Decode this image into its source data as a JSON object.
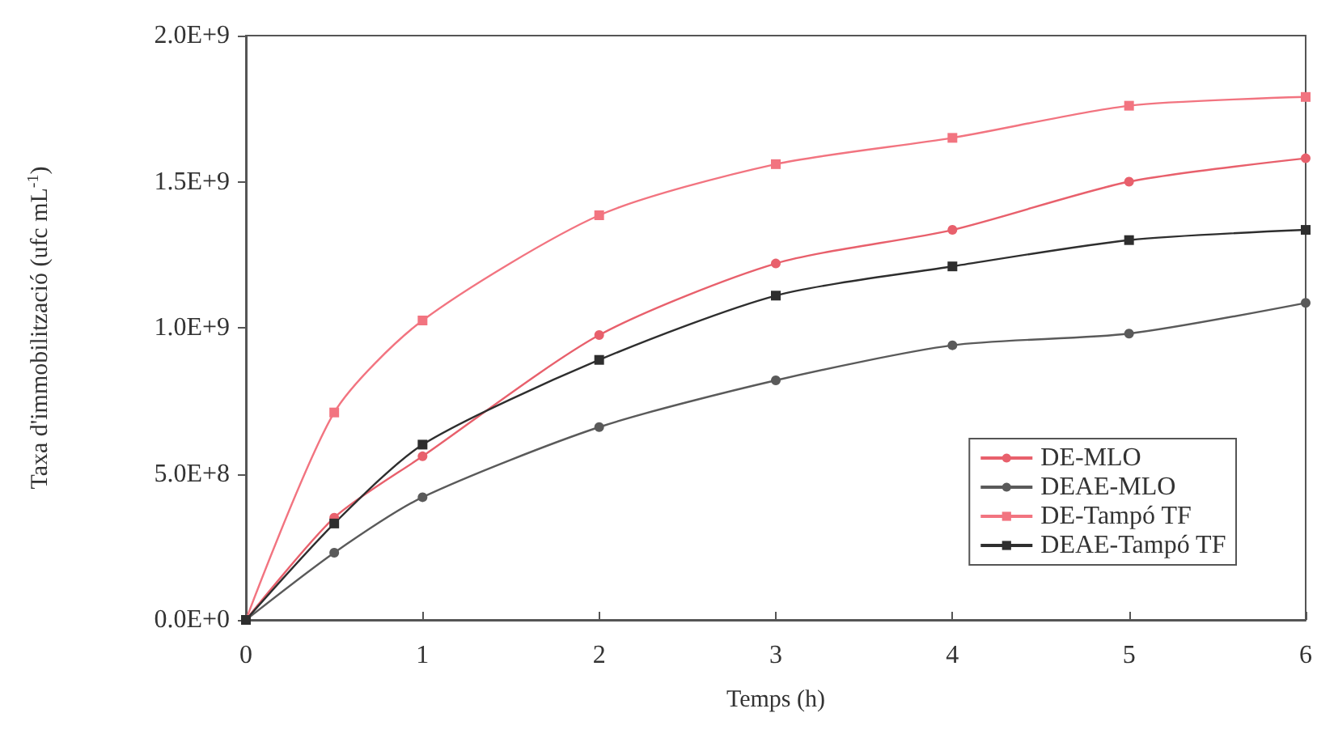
{
  "chart_data": {
    "type": "line",
    "xlabel": "Temps (h)",
    "ylabel": "Taxa d'immobilització (ufc mL$^{-1}$)",
    "x": [
      0,
      0.5,
      1,
      2,
      3,
      4,
      5,
      6
    ],
    "series": [
      {
        "name": "DE-MLO",
        "color": "#e8606c",
        "marker": "circle",
        "values": [
          0,
          350000000,
          560000000,
          975000000,
          1220000000,
          1335000000,
          1500000000,
          1580000000
        ]
      },
      {
        "name": "DEAE-MLO",
        "color": "#5a5a5a",
        "marker": "circle",
        "values": [
          0,
          230000000,
          420000000,
          660000000,
          820000000,
          940000000,
          980000000,
          1085000000
        ]
      },
      {
        "name": "DE-Tampó TF",
        "color": "#f27480",
        "marker": "square",
        "values": [
          0,
          710000000,
          1025000000,
          1385000000,
          1560000000,
          1650000000,
          1760000000,
          1790000000
        ]
      },
      {
        "name": "DEAE-Tampó TF",
        "color": "#2e2e2e",
        "marker": "square",
        "values": [
          0,
          330000000,
          600000000,
          890000000,
          1110000000,
          1210000000,
          1300000000,
          1335000000
        ]
      }
    ],
    "xlim": [
      0,
      6
    ],
    "xticks": [
      0,
      1,
      2,
      3,
      4,
      5,
      6
    ],
    "ylim": [
      0,
      2000000000
    ],
    "yticks": [
      {
        "value": 0,
        "label": "0.0E+0"
      },
      {
        "value": 500000000,
        "label": "5.0E+8"
      },
      {
        "value": 1000000000,
        "label": "1.0E+9"
      },
      {
        "value": 1500000000,
        "label": "1.5E+9"
      },
      {
        "value": 2000000000,
        "label": "2.0E+9"
      }
    ],
    "grid": false,
    "legend": "bottom right"
  }
}
